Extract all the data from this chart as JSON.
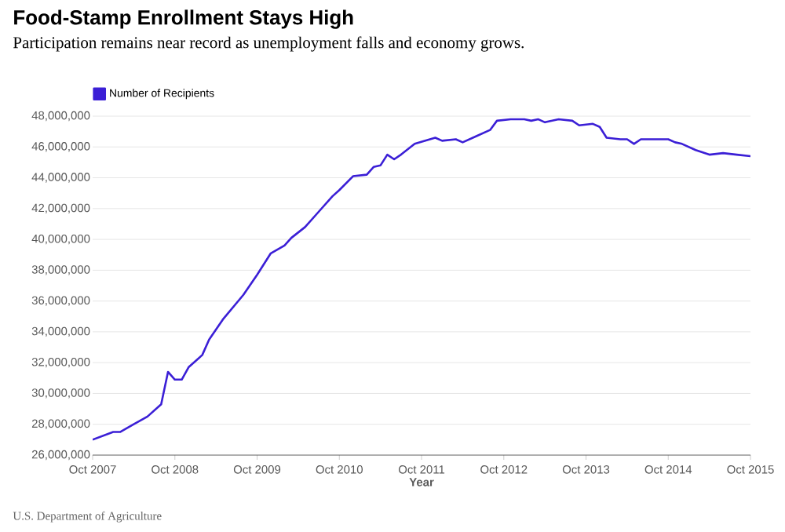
{
  "chart_data": {
    "type": "line",
    "title": "Food-Stamp Enrollment Stays High",
    "subtitle": "Participation remains near record as unemployment falls and economy grows.",
    "xlabel": "Year",
    "annotations": [
      "U.S. Department of Agriculture"
    ],
    "x": [
      "2007-10",
      "2008-01",
      "2008-02",
      "2008-04",
      "2008-06",
      "2008-08",
      "2008-09",
      "2008-10",
      "2008-11",
      "2008-12",
      "2009-02",
      "2009-03",
      "2009-05",
      "2009-08",
      "2009-10",
      "2009-12",
      "2010-02",
      "2010-03",
      "2010-05",
      "2010-07",
      "2010-09",
      "2010-10",
      "2010-12",
      "2011-02",
      "2011-03",
      "2011-04",
      "2011-05",
      "2011-06",
      "2011-07",
      "2011-09",
      "2011-12",
      "2012-01",
      "2012-03",
      "2012-04",
      "2012-06",
      "2012-08",
      "2012-09",
      "2012-11",
      "2013-01",
      "2013-02",
      "2013-03",
      "2013-04",
      "2013-06",
      "2013-08",
      "2013-09",
      "2013-11",
      "2013-12",
      "2014-01",
      "2014-03",
      "2014-04",
      "2014-05",
      "2014-06",
      "2014-10",
      "2014-11",
      "2014-12",
      "2015-02",
      "2015-04",
      "2015-06",
      "2015-08",
      "2015-10"
    ],
    "series": [
      {
        "name": "Number of Recipients",
        "color": "#3b1fd6",
        "values": [
          27000000,
          27500000,
          27500000,
          28000000,
          28500000,
          29300000,
          31400000,
          30900000,
          30900000,
          31700000,
          32500000,
          33500000,
          34800000,
          36400000,
          37700000,
          39100000,
          39600000,
          40100000,
          40800000,
          41800000,
          42800000,
          43200000,
          44100000,
          44200000,
          44700000,
          44800000,
          45500000,
          45200000,
          45500000,
          46200000,
          46600000,
          46400000,
          46500000,
          46300000,
          46700000,
          47100000,
          47700000,
          47800000,
          47800000,
          47700000,
          47800000,
          47600000,
          47800000,
          47700000,
          47400000,
          47500000,
          47300000,
          46600000,
          46500000,
          46500000,
          46200000,
          46500000,
          46500000,
          46300000,
          46200000,
          45800000,
          45500000,
          45600000,
          45500000,
          45400000
        ]
      }
    ],
    "xlim": [
      "2007-10",
      "2015-10"
    ],
    "xticks": [
      {
        "value": "2007-10",
        "label": "Oct 2007"
      },
      {
        "value": "2008-10",
        "label": "Oct 2008"
      },
      {
        "value": "2009-10",
        "label": "Oct 2009"
      },
      {
        "value": "2010-10",
        "label": "Oct 2010"
      },
      {
        "value": "2011-10",
        "label": "Oct 2011"
      },
      {
        "value": "2012-10",
        "label": "Oct 2012"
      },
      {
        "value": "2013-10",
        "label": "Oct 2013"
      },
      {
        "value": "2014-10",
        "label": "Oct 2014"
      },
      {
        "value": "2015-10",
        "label": "Oct 2015"
      }
    ],
    "ylim": [
      26000000,
      48000000
    ],
    "yticks": [
      {
        "value": 26000000,
        "label": "26,000,000"
      },
      {
        "value": 28000000,
        "label": "28,000,000"
      },
      {
        "value": 30000000,
        "label": "30,000,000"
      },
      {
        "value": 32000000,
        "label": "32,000,000"
      },
      {
        "value": 34000000,
        "label": "34,000,000"
      },
      {
        "value": 36000000,
        "label": "36,000,000"
      },
      {
        "value": 38000000,
        "label": "38,000,000"
      },
      {
        "value": 40000000,
        "label": "40,000,000"
      },
      {
        "value": 42000000,
        "label": "42,000,000"
      },
      {
        "value": 44000000,
        "label": "44,000,000"
      },
      {
        "value": 46000000,
        "label": "46,000,000"
      },
      {
        "value": 48000000,
        "label": "48,000,000"
      }
    ],
    "grid": "y",
    "legend": "top left",
    "marker": "none",
    "line_style": "solid"
  }
}
